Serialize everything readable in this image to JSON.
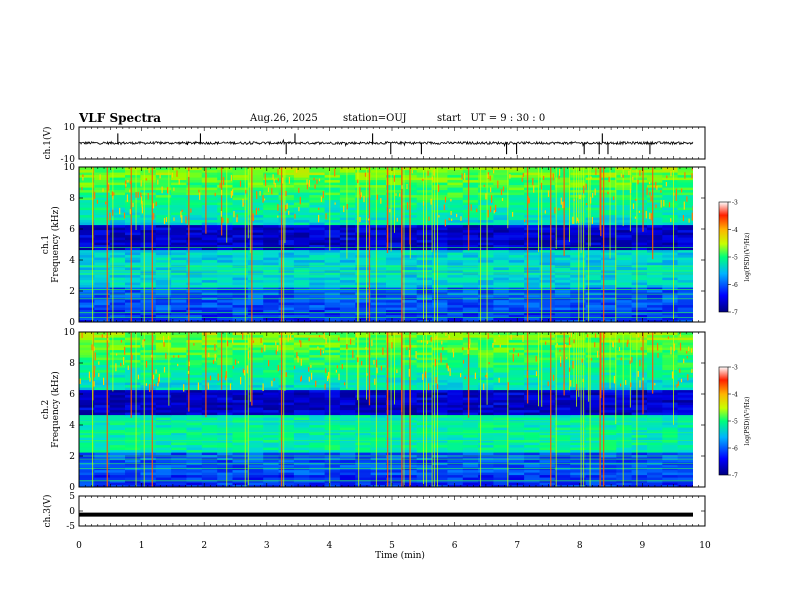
{
  "header": {
    "title": "VLF Spectra",
    "date": "Aug.26, 2025",
    "station": "station=OUJ",
    "start_label": "start",
    "start_ut": "UT =  9 : 30 : 0"
  },
  "colors": {
    "low": "#00008f",
    "mid": "#28c8c8",
    "high": "#ff8800",
    "max": "#800000"
  },
  "chart_data": [
    {
      "type": "line",
      "panel": "ch1_waveform",
      "ylabel": "ch.1(V)",
      "ylim": [
        -10,
        10
      ],
      "yticks": [
        -10,
        10
      ],
      "baseline_v": 0,
      "noise_amplitude_v": 1,
      "spike_times_min": [
        0.62,
        1.94,
        3.31,
        3.45,
        4.69,
        4.98,
        5.47,
        6.83,
        6.99,
        8.07,
        8.31,
        8.36,
        8.45,
        9.12
      ]
    },
    {
      "type": "heatmap",
      "panel": "ch1_spectrogram",
      "ylabel_line1": "ch.1",
      "ylabel_line2": "Frequency  (kHz)",
      "ylim": [
        0,
        10
      ],
      "yticks": [
        0,
        2,
        4,
        6,
        8,
        10
      ],
      "hum_lines_khz": [
        0.3,
        0.6,
        1.5,
        1.8,
        2.1,
        3.1,
        3.3,
        3.6,
        4.8
      ],
      "dark_band_khz": [
        4.6,
        6.3
      ],
      "bright_band_khz": [
        6.3,
        10
      ]
    },
    {
      "type": "heatmap",
      "panel": "ch2_spectrogram",
      "ylabel_line1": "ch.2",
      "ylabel_line2": "Frequency  (kHz)",
      "ylim": [
        0,
        10
      ],
      "yticks": [
        0,
        2,
        4,
        6,
        8,
        10
      ],
      "hum_lines_khz": [
        0.4,
        1.2,
        1.5,
        1.8,
        2.0,
        3.0,
        3.5,
        4.2
      ],
      "dark_band_khz": [
        4.6,
        6.3
      ],
      "bright_band_khz": [
        6.3,
        10
      ]
    },
    {
      "type": "line",
      "panel": "ch3_waveform",
      "ylabel": "ch.3(V)",
      "ylim": [
        -5,
        5
      ],
      "yticks": [
        -5,
        0,
        5
      ],
      "constant_v": -1.2
    }
  ],
  "colorbar": {
    "label": "log(PSD)(V²/Hz)",
    "range": [
      -7,
      -3
    ],
    "ticks": [
      "-3",
      "-4",
      "-5",
      "-6",
      "-7"
    ]
  },
  "xaxis": {
    "label": "Time  (min)",
    "range": [
      0,
      10
    ],
    "ticks": [
      "0",
      "1",
      "2",
      "3",
      "4",
      "5",
      "6",
      "7",
      "8",
      "9",
      "10"
    ]
  }
}
